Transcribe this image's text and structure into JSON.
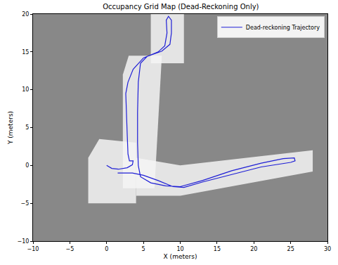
{
  "chart_data": {
    "type": "line",
    "title": "Occupancy Grid Map (Dead-Reckoning Only)",
    "x_label": "X (meters)",
    "y_label": "Y (meters)",
    "xlim": [
      -10,
      30
    ],
    "ylim": [
      -10,
      20
    ],
    "xticks": [
      {
        "value": -10,
        "label": "−10"
      },
      {
        "value": -5,
        "label": "−5"
      },
      0,
      5,
      10,
      15,
      20,
      25,
      30
    ],
    "yticks": [
      {
        "value": -10,
        "label": "−10"
      },
      {
        "value": -5,
        "label": "−5"
      },
      0,
      5,
      10,
      15,
      20
    ],
    "grid": false,
    "legend": "upper right",
    "free_space": [
      {
        "color": "#f4f4f4",
        "x": [
          -2.5,
          4,
          4,
          -1,
          -2.5
        ],
        "y": [
          -5,
          -5,
          3,
          3.5,
          1
        ]
      },
      {
        "color": "#f4f4f4",
        "x": [
          2.2,
          6.5,
          7.5,
          3,
          2.2
        ],
        "y": [
          -3,
          -3,
          14.5,
          14.5,
          12
        ]
      },
      {
        "color": "#f4f4f4",
        "x": [
          6,
          10.5,
          10.5,
          6
        ],
        "y": [
          13.5,
          13.5,
          20,
          20
        ]
      },
      {
        "color": "#f4f4f4",
        "x": [
          4,
          10,
          28,
          28,
          10,
          4
        ],
        "y": [
          -4,
          -4,
          -0.8,
          2,
          0,
          1
        ]
      }
    ],
    "series": [
      {
        "name": "Dead-reckoning Trajectory",
        "color": "#1f1fd6",
        "line_style": "solid",
        "x": [
          0,
          0.7,
          1.6,
          2.8,
          3.5,
          3.6,
          3.1,
          2.9,
          2.8,
          2.7,
          2.6,
          2.9,
          3.6,
          5,
          7,
          7.9,
          8.2,
          8.1,
          8.4,
          8.8,
          8.8,
          8.6,
          7.5,
          5.5,
          4.6,
          4.3,
          4.2,
          4.2,
          4.3,
          4.6,
          6,
          8,
          10,
          13,
          17,
          21,
          24,
          25.5,
          25.6,
          25,
          21,
          17,
          13,
          10.5,
          9,
          7,
          5,
          3.5,
          1.5
        ],
        "y": [
          0,
          -0.4,
          -0.5,
          -0.3,
          0.1,
          0.6,
          0.6,
          1.5,
          4,
          7,
          9.5,
          11,
          12.7,
          14.2,
          15,
          15.8,
          17.5,
          19.2,
          19.7,
          19.2,
          17.5,
          16,
          15.1,
          14.4,
          13.5,
          11,
          7,
          3,
          0,
          -1.5,
          -2.3,
          -2.7,
          -2.8,
          -2,
          -0.7,
          0.3,
          0.9,
          1.0,
          0.6,
          0.4,
          -0.2,
          -1.2,
          -2.2,
          -2.9,
          -2.8,
          -2.0,
          -1.3,
          -1.0,
          -1.0
        ]
      }
    ]
  }
}
